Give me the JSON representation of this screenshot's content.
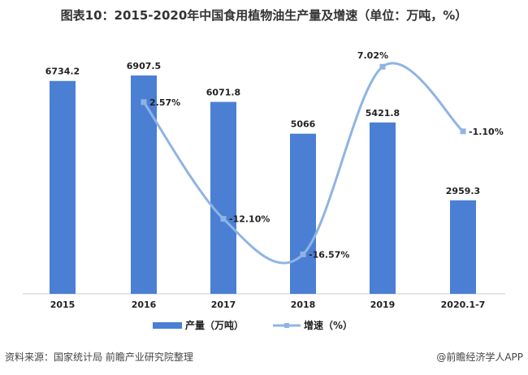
{
  "title": "图表10：2015-2020年中国食用植物油生产量及增速（单位：万吨，%）",
  "source": "资料来源：国家统计局 前瞻产业研究院整理",
  "credit": "@前瞻经济学人APP",
  "colors": {
    "bar": "#4a7fd4",
    "line": "#8fb4e3"
  },
  "chart_data": {
    "type": "bar+line",
    "categories": [
      "2015",
      "2016",
      "2017",
      "2018",
      "2019",
      "2020.1-7"
    ],
    "series": [
      {
        "name": "产量（万吨）",
        "type": "bar",
        "values": [
          6734.2,
          6907.5,
          6071.8,
          5066,
          5421.8,
          2959.3
        ],
        "labels": [
          "6734.2",
          "6907.5",
          "6071.8",
          "5066",
          "5421.8",
          "2959.3"
        ]
      },
      {
        "name": "增速（%）",
        "type": "line",
        "values": [
          null,
          2.57,
          -12.1,
          -16.57,
          7.02,
          -1.1
        ],
        "labels": [
          "",
          "2.57%",
          "-12.10%",
          "-16.57%",
          "7.02%",
          "-1.10%"
        ]
      }
    ],
    "legend": "bottom-center",
    "grid": false
  }
}
